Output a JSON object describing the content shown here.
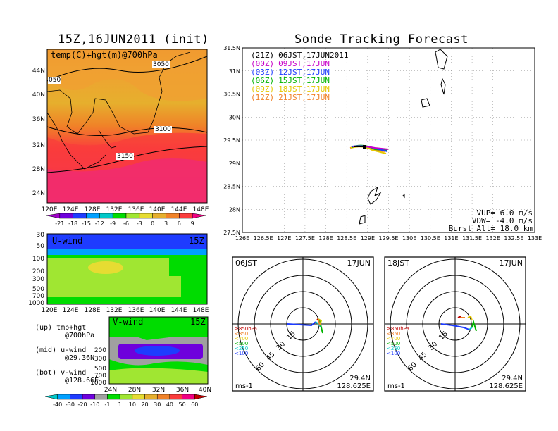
{
  "left_panel": {
    "title": "15Z,16JUN2011 (init)",
    "map": {
      "label": "temp(C)+hgt(m)@700hPa",
      "contour_labels": [
        "3050",
        "050",
        "3100",
        "3150"
      ],
      "lat_ticks": [
        "44N",
        "40N",
        "36N",
        "32N",
        "28N",
        "24N"
      ],
      "lon_ticks": [
        "120E",
        "124E",
        "128E",
        "132E",
        "136E",
        "140E",
        "144E",
        "148E"
      ]
    },
    "temp_colorbar": {
      "labels": [
        "-21",
        "-18",
        "-15",
        "-12",
        "-9",
        "-6",
        "-3",
        "0",
        "3",
        "6",
        "9"
      ],
      "colors": [
        "#a000c8",
        "#6e00dc",
        "#1e3cff",
        "#00a0ff",
        "#00c8c8",
        "#00dc00",
        "#a0e632",
        "#e6dc32",
        "#e6af2d",
        "#f08228",
        "#fa3c3c",
        "#f00082"
      ]
    },
    "uwind": {
      "label": "U-wind",
      "time": "15Z",
      "y_ticks": [
        "30",
        "50",
        "100",
        "200",
        "300",
        "500",
        "700",
        "1000"
      ],
      "x_ticks": [
        "120E",
        "124E",
        "128E",
        "132E",
        "136E",
        "140E",
        "144E",
        "148E"
      ]
    },
    "vwind": {
      "label": "V-wind",
      "time": "15Z",
      "y_ticks": [
        "200",
        "300",
        "500",
        "700",
        "1000"
      ],
      "x_ticks": [
        "24N",
        "28N",
        "32N",
        "36N",
        "40N"
      ]
    },
    "notes": [
      {
        "text": "(up) tmp+hgt",
        "sub": "@700hPa"
      },
      {
        "text": "(mid) u-wind",
        "sub": "@29.36N"
      },
      {
        "text": "(bot) v-wind",
        "sub": "@128.66E"
      }
    ],
    "wind_colorbar": {
      "labels": [
        "-40",
        "-30",
        "-20",
        "-10",
        "-1",
        "1",
        "10",
        "20",
        "30",
        "40",
        "50",
        "60"
      ],
      "colors": [
        "#00c8c8",
        "#00a0ff",
        "#1e3cff",
        "#6e00dc",
        "#a0a0a0",
        "#00dc00",
        "#a0e632",
        "#e6dc32",
        "#e6af2d",
        "#f08228",
        "#fa3c3c",
        "#f00082",
        "#c00000"
      ]
    }
  },
  "right_panel": {
    "title": "Sonde Tracking Forecast",
    "tracks": [
      {
        "init": "(21Z)",
        "time": "06JST,17JUN2011",
        "color": "#000000"
      },
      {
        "init": "(00Z)",
        "time": "09JST,17JUN",
        "color": "#c800c8"
      },
      {
        "init": "(03Z)",
        "time": "12JST,17JUN",
        "color": "#1e3cff"
      },
      {
        "init": "(06Z)",
        "time": "15JST,17JUN",
        "color": "#00b400"
      },
      {
        "init": "(09Z)",
        "time": "18JST,17JUN",
        "color": "#e6c800"
      },
      {
        "init": "(12Z)",
        "time": "21JST,17JUN",
        "color": "#f08228"
      }
    ],
    "lat_ticks": [
      "31.5N",
      "31N",
      "30.5N",
      "30N",
      "29.5N",
      "29N",
      "28.5N",
      "28N",
      "27.5N"
    ],
    "lon_ticks": [
      "126E",
      "126.5E",
      "127E",
      "127.5E",
      "128E",
      "128.5E",
      "129E",
      "129.5E",
      "130E",
      "130.5E",
      "131E",
      "131.5E",
      "132E",
      "132.5E",
      "133E"
    ],
    "params": [
      "VUP= 6.0 m/s",
      "VDW= -4.0 m/s",
      "Burst Alt= 18.0 km"
    ],
    "hodographs": [
      {
        "label": "06JST",
        "date": "17JUN",
        "legend": [
          "≥850hPa",
          "<850",
          "<700",
          "<500",
          "<250",
          "<100"
        ],
        "legend_colors": [
          "#c00000",
          "#f08228",
          "#e6c800",
          "#00b400",
          "#00c8c8",
          "#1e3cff"
        ],
        "ring_labels": [
          "15",
          "30",
          "45",
          "60"
        ],
        "unit": "ms-1",
        "lat": "29.4N",
        "lon": "128.625E"
      },
      {
        "label": "18JST",
        "date": "17JUN",
        "legend": [
          "≥850hPa",
          "<850",
          "<700",
          "<500",
          "<250",
          "<100"
        ],
        "legend_colors": [
          "#c00000",
          "#f08228",
          "#e6c800",
          "#00b400",
          "#00c8c8",
          "#1e3cff"
        ],
        "ring_labels": [
          "15",
          "30",
          "45",
          "60"
        ],
        "unit": "ms-1",
        "lat": "29.4N",
        "lon": "128.625E"
      }
    ]
  }
}
